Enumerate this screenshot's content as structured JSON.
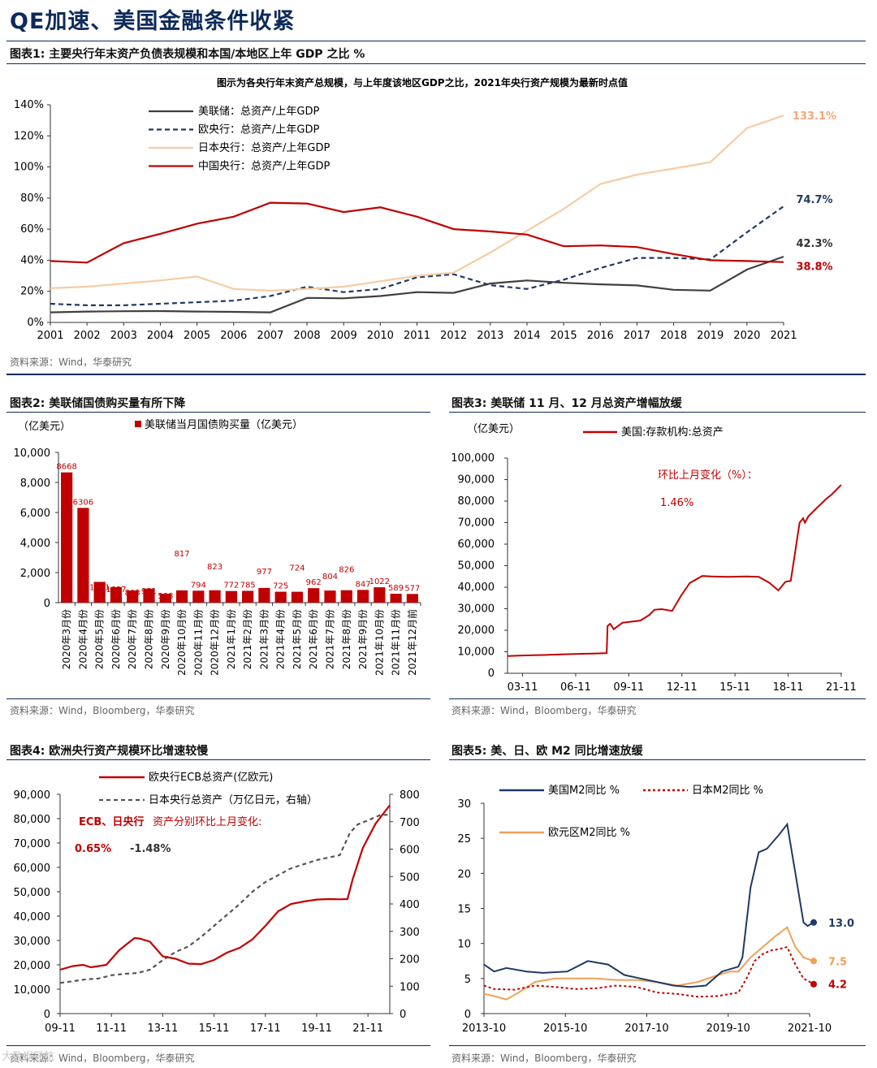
{
  "page": {
    "title": "QE加速、美国金融条件收紧",
    "watermark": "大数据导航"
  },
  "fig1": {
    "title": "图表1:  主要央行年末资产负债表规模和本国/本地区上年 GDP 之比  %",
    "source": "资料来源：Wind，华泰研究",
    "chart_data": {
      "type": "line",
      "title": "图示为各央行年末资产总规模，与上年度该地区GDP之比，2021年央行资产规模为最新时点值",
      "x": [
        "2001",
        "2002",
        "2003",
        "2004",
        "2005",
        "2006",
        "2007",
        "2008",
        "2009",
        "2010",
        "2011",
        "2012",
        "2013",
        "2014",
        "2015",
        "2016",
        "2017",
        "2018",
        "2019",
        "2020",
        "2021"
      ],
      "ylim": [
        0,
        140
      ],
      "yticks": [
        "0%",
        "20%",
        "40%",
        "60%",
        "80%",
        "100%",
        "120%",
        "140%"
      ],
      "series": [
        {
          "name": "美联储：总资产/上年GDP",
          "color": "#404040",
          "dash": "",
          "values": [
            6.5,
            7,
            7.2,
            7.3,
            7,
            6.8,
            6.5,
            15.8,
            15.5,
            17,
            19.5,
            19,
            25,
            27,
            25.5,
            24.5,
            23.8,
            21,
            20.5,
            34,
            42.3
          ],
          "end_label": "42.3%"
        },
        {
          "name": "欧央行：总资产/上年GDP",
          "color": "#1f3a66",
          "dash": "6,4",
          "values": [
            12,
            11,
            11,
            12,
            13,
            14,
            17,
            23,
            19.5,
            21.5,
            29,
            31,
            24,
            21.5,
            27.5,
            35,
            41.5,
            41.5,
            40.5,
            58,
            74.7
          ],
          "end_label": "74.7%"
        },
        {
          "name": "日本央行：总资产/上年GDP",
          "color": "#f8cba3",
          "dash": "",
          "values": [
            22,
            23,
            25,
            27,
            29.5,
            21.5,
            20.5,
            21.5,
            23,
            26.5,
            30,
            32,
            45,
            59,
            73,
            89,
            95,
            99,
            103,
            125,
            133.1
          ],
          "end_label": "133.1%"
        },
        {
          "name": "中国央行：总资产/上年GDP",
          "color": "#c00000",
          "dash": "",
          "values": [
            39.5,
            38.5,
            51,
            57,
            63.5,
            68,
            77,
            76.5,
            71,
            74,
            68,
            60,
            58.5,
            56.5,
            49,
            49.5,
            48.5,
            44,
            40,
            39.5,
            38.8
          ],
          "end_label": "38.8%"
        }
      ]
    }
  },
  "fig2": {
    "title": "图表2:  美联储国债购买量有所下降",
    "source": "资料来源：Wind，Bloomberg，华泰研究",
    "chart_data": {
      "type": "bar",
      "ylabel": "（亿美元）",
      "legend": "美联储当月国债购买量（亿美元）",
      "ylim": [
        0,
        10000
      ],
      "yticks": [
        "0",
        "2,000",
        "4,000",
        "6,000",
        "8,000",
        "10,000"
      ],
      "categories": [
        "2020年3月份",
        "2020年4月份",
        "2020年5月份",
        "2020年6月份",
        "2020年7月份",
        "2020年8月份",
        "2020年9月份",
        "2020年10月份",
        "2020年11月份",
        "2020年12月份",
        "2021年1月份",
        "2021年2月份",
        "2021年3月份",
        "2021年4月份",
        "2021年5月份",
        "2021年6月份",
        "2021年7月份",
        "2021年8月份",
        "2021年9月份",
        "2021年10月份",
        "2021年11月份",
        "2021年12月前"
      ],
      "values": [
        8668,
        6306,
        1381,
        1037,
        803,
        931,
        588,
        817,
        794,
        823,
        772,
        785,
        977,
        725,
        724,
        962,
        804,
        826,
        847,
        1022,
        589,
        577
      ],
      "labels": [
        "8668",
        "6306",
        "1381",
        "1037",
        "803",
        "931",
        "588",
        "817",
        "794",
        "823",
        "772",
        "785",
        "977",
        "725",
        "724",
        "962",
        "804",
        "826",
        "847",
        "1022",
        "589",
        "577"
      ]
    }
  },
  "fig3": {
    "title": "图表3:  美联储 11 月、12 月总资产增幅放缓",
    "source": "资料来源：Wind，Bloomberg，华泰研究",
    "chart_data": {
      "type": "line",
      "ylabel": "（亿美元）",
      "legend": "美国:存款机构:总资产",
      "annotation_label": "环比上月变化（%）：",
      "annotation_value": "1.46%",
      "ylim": [
        0,
        100000
      ],
      "yticks": [
        "0",
        "10,000",
        "20,000",
        "30,000",
        "40,000",
        "50,000",
        "60,000",
        "70,000",
        "80,000",
        "90,000",
        "100,000"
      ],
      "xticks": [
        "03-11",
        "06-11",
        "09-11",
        "12-11",
        "15-11",
        "18-11",
        "21-11"
      ],
      "x": [
        2003.0,
        2004,
        2005,
        2006,
        2007,
        2008.0,
        2008.6,
        2008.65,
        2008.8,
        2009.0,
        2009.5,
        2010.5,
        2011.0,
        2011.3,
        2011.7,
        2012.3,
        2012.8,
        2013.3,
        2014.0,
        2014.5,
        2015.5,
        2016.5,
        2017.2,
        2017.8,
        2018.3,
        2018.7,
        2019.0,
        2019.5,
        2019.7,
        2019.8,
        2020.0,
        2020.5,
        2021.0,
        2021.3,
        2021.85
      ],
      "values": [
        8000,
        8300,
        8500,
        8800,
        9000,
        9200,
        9400,
        22000,
        23000,
        20500,
        23500,
        24500,
        27000,
        29500,
        29800,
        29000,
        36000,
        42000,
        45200,
        45000,
        44800,
        45000,
        44800,
        42000,
        38500,
        42500,
        43000,
        70000,
        72000,
        70000,
        73000,
        77000,
        81000,
        83000,
        87500
      ],
      "color": "#c00000"
    }
  },
  "fig4": {
    "title": "图表4:  欧洲央行资产规模环比增速较慢",
    "source": "资料来源：Wind，Bloomberg，华泰研究",
    "chart_data": {
      "type": "line",
      "legend_left": "欧央行ECB总资产(亿欧元)",
      "legend_right": "日本央行总资产（万亿日元，右轴）",
      "annotation_label_a": "ECB、日央行",
      "annotation_label_b": "资产分别环比上月变化:",
      "ecb_change": "0.65%",
      "boj_change": "-1.48%",
      "ylim_left": [
        0,
        90000
      ],
      "ylim_right": [
        0,
        800
      ],
      "yticks_left": [
        "0",
        "10,000",
        "20,000",
        "30,000",
        "40,000",
        "50,000",
        "60,000",
        "70,000",
        "80,000",
        "90,000"
      ],
      "yticks_right": [
        "0",
        "100",
        "200",
        "300",
        "400",
        "500",
        "600",
        "700",
        "800"
      ],
      "xticks": [
        "09-11",
        "11-11",
        "13-11",
        "15-11",
        "17-11",
        "19-11",
        "21-11"
      ],
      "series": [
        {
          "name": "欧央行ECB总资产(亿欧元)",
          "axis": "left",
          "color": "#c00000",
          "dash": "",
          "x": [
            2009.0,
            2009.5,
            2009.9,
            2010.2,
            2010.8,
            2011.3,
            2011.6,
            2011.9,
            2012.1,
            2012.5,
            2013.0,
            2013.5,
            2014.0,
            2014.5,
            2015.0,
            2015.5,
            2016.0,
            2016.5,
            2017.0,
            2017.5,
            2018.0,
            2018.5,
            2019.0,
            2019.5,
            2019.9,
            2020.2,
            2020.4,
            2020.8,
            2021.0,
            2021.3,
            2021.85
          ],
          "values": [
            18000,
            19500,
            20000,
            19000,
            20000,
            26000,
            28500,
            31000,
            30800,
            29500,
            23500,
            22500,
            20500,
            20300,
            22000,
            25000,
            27000,
            30500,
            36000,
            42000,
            45000,
            46000,
            46800,
            47000,
            46900,
            47000,
            55000,
            68000,
            72000,
            78000,
            85500
          ]
        },
        {
          "name": "日本央行总资产（万亿日元，右轴）",
          "axis": "right",
          "color": "#555555",
          "dash": "5,4",
          "x": [
            2009.0,
            2009.5,
            2010.0,
            2010.5,
            2011.0,
            2011.5,
            2012.0,
            2012.5,
            2013.0,
            2013.5,
            2014.0,
            2014.5,
            2015.0,
            2015.5,
            2016.0,
            2016.5,
            2017.0,
            2017.5,
            2018.0,
            2018.5,
            2019.0,
            2019.5,
            2019.9,
            2020.3,
            2020.6,
            2021.0,
            2021.5,
            2021.85
          ],
          "values": [
            112,
            118,
            125,
            128,
            140,
            145,
            148,
            160,
            195,
            225,
            245,
            280,
            320,
            360,
            400,
            445,
            480,
            505,
            530,
            545,
            560,
            570,
            578,
            660,
            690,
            705,
            725,
            725
          ]
        }
      ]
    }
  },
  "fig5": {
    "title": "图表5:  美、日、欧 M2 同比增速放缓",
    "source": "资料来源：Wind，Bloomberg，华泰研究",
    "chart_data": {
      "type": "line",
      "ylim": [
        0,
        30
      ],
      "yticks": [
        "0",
        "5",
        "10",
        "15",
        "20",
        "25",
        "30"
      ],
      "xticks": [
        "2013-10",
        "2015-10",
        "2017-10",
        "2019-10",
        "2021-10"
      ],
      "series": [
        {
          "name": "美国M2同比 %",
          "color": "#1f3a66",
          "dash": "",
          "end_label": "13.0",
          "x": [
            2013.75,
            2014.0,
            2014.3,
            2014.8,
            2015.2,
            2015.8,
            2016.3,
            2016.8,
            2017.2,
            2017.6,
            2018.0,
            2018.4,
            2018.8,
            2019.2,
            2019.6,
            2020.0,
            2020.1,
            2020.3,
            2020.5,
            2020.7,
            2021.0,
            2021.2,
            2021.4,
            2021.6,
            2021.7,
            2021.85
          ],
          "values": [
            7,
            6,
            6.5,
            6,
            5.8,
            6,
            7.5,
            7,
            5.5,
            5,
            4.5,
            4,
            3.8,
            4,
            6,
            6.7,
            8,
            18,
            23,
            23.5,
            25.5,
            27,
            20,
            13,
            12.5,
            13.0
          ]
        },
        {
          "name": "日本M2同比 %",
          "color": "#c00000",
          "dash": "3,3",
          "end_label": "4.2",
          "x": [
            2013.75,
            2014.0,
            2014.5,
            2015.0,
            2015.5,
            2016.0,
            2016.5,
            2017.0,
            2017.5,
            2018.0,
            2018.5,
            2019.0,
            2019.5,
            2020.0,
            2020.2,
            2020.4,
            2020.6,
            2020.8,
            2021.0,
            2021.2,
            2021.4,
            2021.6,
            2021.85
          ],
          "values": [
            4,
            3.5,
            3.4,
            4,
            3.8,
            3.5,
            3.6,
            4,
            3.8,
            3,
            2.8,
            2.4,
            2.5,
            3,
            5,
            7.5,
            8.5,
            9,
            9.2,
            9.5,
            7,
            5,
            4.2
          ]
        },
        {
          "name": "欧元区M2同比 %",
          "color": "#f0a058",
          "dash": "",
          "end_label": "7.5",
          "x": [
            2013.75,
            2014.0,
            2014.3,
            2014.6,
            2015.0,
            2015.5,
            2016.0,
            2016.5,
            2017.0,
            2017.5,
            2018.0,
            2018.5,
            2019.0,
            2019.5,
            2019.8,
            2020.0,
            2020.3,
            2020.6,
            2020.9,
            2021.2,
            2021.4,
            2021.6,
            2021.85
          ],
          "values": [
            2.8,
            2.5,
            2,
            3,
            4.5,
            5,
            5,
            5,
            4.8,
            4.8,
            4.5,
            4,
            4.5,
            5.5,
            6,
            6,
            8,
            9.5,
            11,
            12.3,
            9.5,
            8,
            7.5
          ]
        }
      ]
    }
  }
}
